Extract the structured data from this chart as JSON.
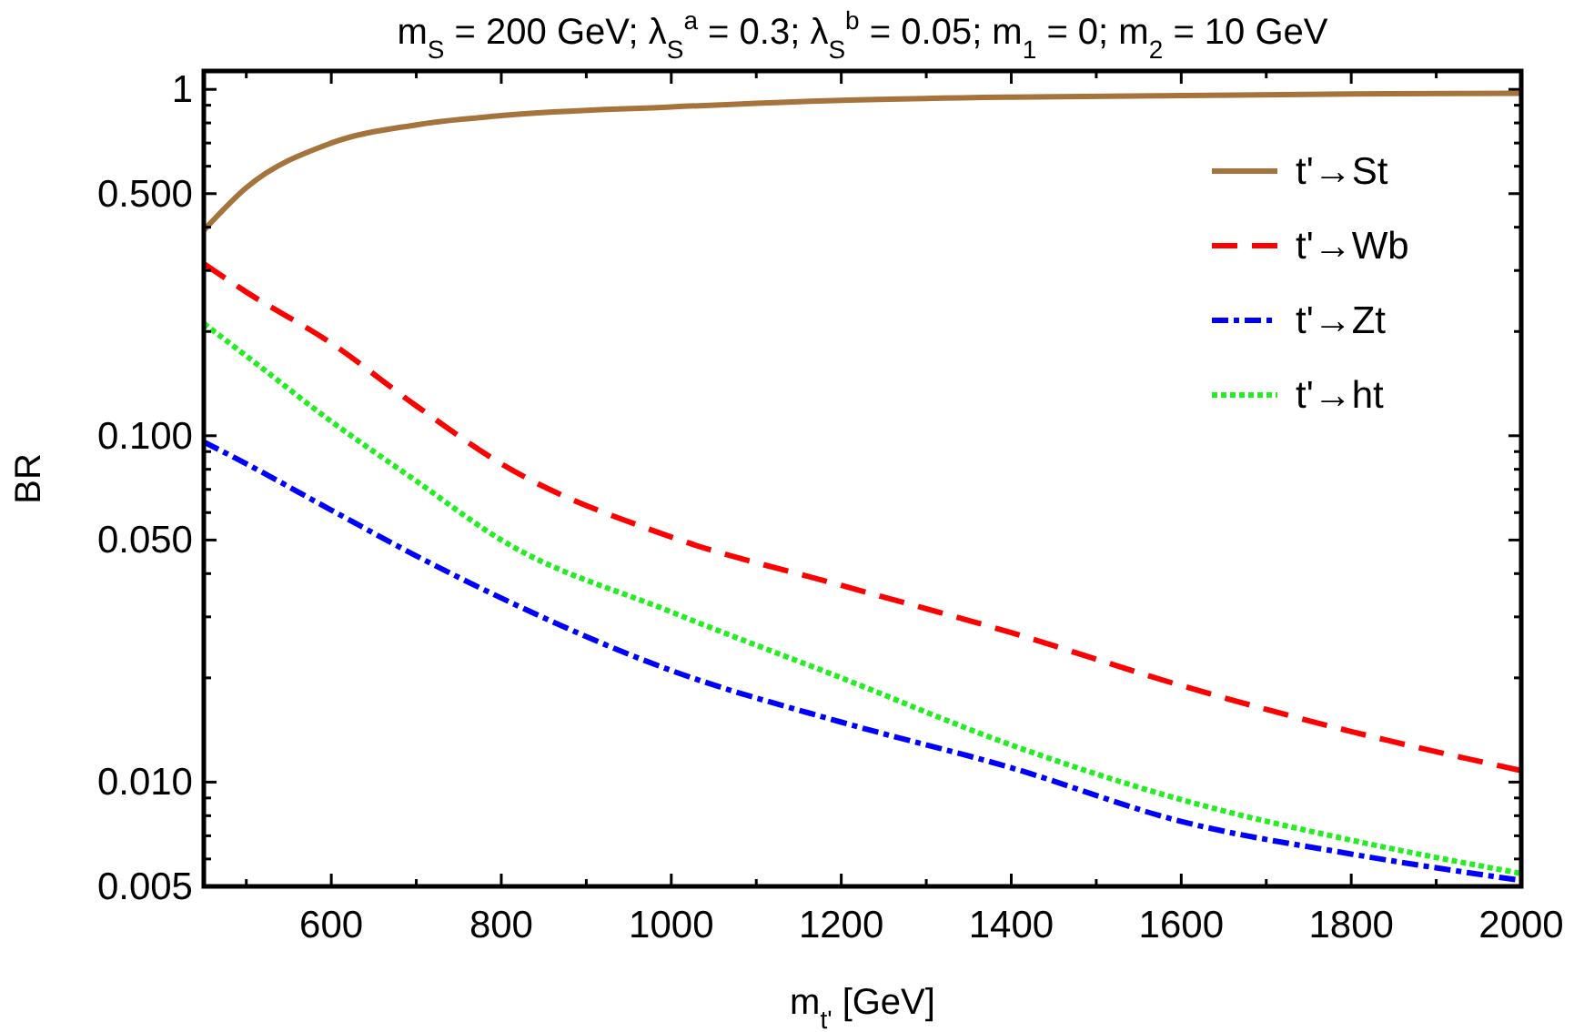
{
  "chart_data": {
    "type": "line",
    "title": "m$_{S}$ = 200 GeV; λ$_{S}$$^{a}$ = 0.3; λ$_{S}$$^{b}$ = 0.05; m$_{1}$ = 0; m$_{2}$ = 10 GeV",
    "xlabel": "m$_{t'}$ [GeV]",
    "ylabel": "BR",
    "x": [
      450,
      500,
      600,
      700,
      800,
      1000,
      1200,
      1400,
      1600,
      1800,
      2000
    ],
    "series": [
      {
        "name": "t'→St",
        "color": "#a5733b",
        "line_style": "solid",
        "values": [
          0.392,
          0.52,
          0.7,
          0.79,
          0.84,
          0.89,
          0.93,
          0.95,
          0.96,
          0.97,
          0.975
        ]
      },
      {
        "name": "t'→Wb",
        "color": "#ff0000",
        "line_style": "dashed",
        "values": [
          0.314,
          0.26,
          0.185,
          0.122,
          0.083,
          0.051,
          0.037,
          0.027,
          0.019,
          0.014,
          0.0108
        ]
      },
      {
        "name": "t'→Zt",
        "color": "#0000ff",
        "line_style": "dashdot",
        "values": [
          0.096,
          0.083,
          0.061,
          0.045,
          0.034,
          0.021,
          0.0149,
          0.011,
          0.0077,
          0.0062,
          0.0052
        ]
      },
      {
        "name": "t'→ht",
        "color": "#22ee22",
        "line_style": "dotted",
        "values": [
          0.211,
          0.17,
          0.11,
          0.074,
          0.05,
          0.031,
          0.02,
          0.0128,
          0.0089,
          0.0068,
          0.00545
        ]
      }
    ],
    "log": "y",
    "xlim": [
      450,
      2000
    ],
    "ylim": [
      0.005,
      1.13
    ],
    "xticks": [
      {
        "value": 500,
        "label": null
      },
      600,
      {
        "value": 700,
        "label": null
      },
      800,
      {
        "value": 900,
        "label": null
      },
      1000,
      {
        "value": 1100,
        "label": null
      },
      1200,
      {
        "value": 1300,
        "label": null
      },
      1400,
      {
        "value": 1500,
        "label": null
      },
      1600,
      {
        "value": 1700,
        "label": null
      },
      1800,
      {
        "value": 1900,
        "label": null
      },
      2000
    ],
    "yticks": [
      {
        "value": 0.005,
        "label": "0.005"
      },
      {
        "value": 0.006,
        "label": null
      },
      {
        "value": 0.007,
        "label": null
      },
      {
        "value": 0.008,
        "label": null
      },
      {
        "value": 0.009,
        "label": null
      },
      {
        "value": 0.01,
        "label": "0.010"
      },
      {
        "value": 0.02,
        "label": null
      },
      {
        "value": 0.03,
        "label": null
      },
      {
        "value": 0.04,
        "label": null
      },
      {
        "value": 0.05,
        "label": "0.050"
      },
      {
        "value": 0.06,
        "label": null
      },
      {
        "value": 0.07,
        "label": null
      },
      {
        "value": 0.08,
        "label": null
      },
      {
        "value": 0.09,
        "label": null
      },
      {
        "value": 0.1,
        "label": "0.100"
      },
      {
        "value": 0.2,
        "label": null
      },
      {
        "value": 0.3,
        "label": null
      },
      {
        "value": 0.4,
        "label": null
      },
      {
        "value": 0.5,
        "label": "0.500"
      },
      {
        "value": 0.6,
        "label": null
      },
      {
        "value": 0.7,
        "label": null
      },
      {
        "value": 0.8,
        "label": null
      },
      {
        "value": 0.9,
        "label": null
      },
      1
    ],
    "legend": "top right",
    "grid": false
  }
}
